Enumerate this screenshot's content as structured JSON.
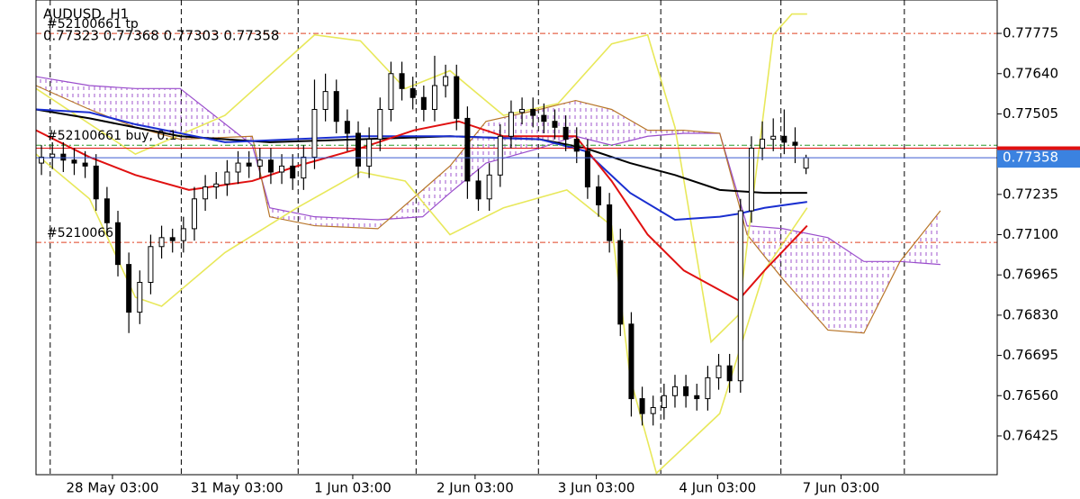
{
  "chart_data": {
    "type": "candlestick",
    "title": "AUDUSD, H1",
    "ohlc_text": "0.77323 0.77368 0.77303 0.77358",
    "xlim": [
      0,
      88
    ],
    "ylim": [
      0.76295,
      0.77887
    ],
    "xticks": [
      {
        "value": 7.0,
        "label": "28 May 03:00"
      },
      {
        "value": 18.4,
        "label": "31 May 03:00"
      },
      {
        "value": 29.0,
        "label": "1 Jun 03:00"
      },
      {
        "value": 40.2,
        "label": "2 Jun 03:00"
      },
      {
        "value": 51.3,
        "label": "3 Jun 03:00"
      },
      {
        "value": 62.4,
        "label": "4 Jun 03:00"
      },
      {
        "value": 73.7,
        "label": "7 Jun 03:00"
      }
    ],
    "day_lines": [
      1.3,
      13.3,
      24.0,
      34.8,
      46.0,
      57.2,
      68.2,
      79.5
    ],
    "yticks": [
      0.77775,
      {
        "value": 0.7764,
        "label": "0.77640"
      },
      0.77505,
      0.77235,
      {
        "value": 0.771,
        "label": "0.77100"
      },
      0.76965,
      {
        "value": 0.7683,
        "label": "0.76830"
      },
      0.76695,
      {
        "value": 0.7656,
        "label": "0.76560"
      },
      0.76425
    ],
    "candles": [
      [
        0.7734,
        0.774,
        0.773,
        0.7736
      ],
      [
        0.7736,
        0.7741,
        0.7732,
        0.7737
      ],
      [
        0.7737,
        0.7741,
        0.7731,
        0.7735
      ],
      [
        0.7735,
        0.7739,
        0.773,
        0.7734
      ],
      [
        0.7734,
        0.7738,
        0.7729,
        0.7733
      ],
      [
        0.7733,
        0.7737,
        0.7718,
        0.7722
      ],
      [
        0.7722,
        0.7726,
        0.771,
        0.7714
      ],
      [
        0.7714,
        0.7718,
        0.7696,
        0.77
      ],
      [
        0.77,
        0.7704,
        0.7677,
        0.7684
      ],
      [
        0.7684,
        0.7698,
        0.768,
        0.7694
      ],
      [
        0.7694,
        0.771,
        0.769,
        0.7706
      ],
      [
        0.7706,
        0.7713,
        0.7702,
        0.7709
      ],
      [
        0.7709,
        0.7712,
        0.7704,
        0.7708
      ],
      [
        0.7708,
        0.7716,
        0.7704,
        0.7712
      ],
      [
        0.7712,
        0.7726,
        0.7708,
        0.7722
      ],
      [
        0.7722,
        0.773,
        0.7718,
        0.7726
      ],
      [
        0.7726,
        0.7731,
        0.7722,
        0.7727
      ],
      [
        0.7727,
        0.7735,
        0.7723,
        0.7731
      ],
      [
        0.7731,
        0.7738,
        0.7727,
        0.7734
      ],
      [
        0.7734,
        0.7738,
        0.7729,
        0.7733
      ],
      [
        0.7733,
        0.7739,
        0.7729,
        0.7735
      ],
      [
        0.7735,
        0.7739,
        0.7727,
        0.7731
      ],
      [
        0.7731,
        0.7737,
        0.7727,
        0.7733
      ],
      [
        0.7733,
        0.7737,
        0.7725,
        0.7729
      ],
      [
        0.7729,
        0.774,
        0.7725,
        0.7736
      ],
      [
        0.7736,
        0.7762,
        0.7732,
        0.7752
      ],
      [
        0.7752,
        0.7764,
        0.7748,
        0.7758
      ],
      [
        0.7758,
        0.7762,
        0.7744,
        0.7748
      ],
      [
        0.7748,
        0.7752,
        0.7738,
        0.7744
      ],
      [
        0.7744,
        0.7748,
        0.7729,
        0.7733
      ],
      [
        0.7733,
        0.7746,
        0.7729,
        0.7742
      ],
      [
        0.7742,
        0.7756,
        0.7738,
        0.7752
      ],
      [
        0.7752,
        0.7768,
        0.7748,
        0.7764
      ],
      [
        0.7764,
        0.7768,
        0.7755,
        0.7759
      ],
      [
        0.7759,
        0.7763,
        0.7752,
        0.7756
      ],
      [
        0.7756,
        0.776,
        0.7748,
        0.7752
      ],
      [
        0.7752,
        0.777,
        0.7748,
        0.776
      ],
      [
        0.776,
        0.7767,
        0.7756,
        0.7763
      ],
      [
        0.7763,
        0.7767,
        0.7745,
        0.7749
      ],
      [
        0.7749,
        0.7753,
        0.7722,
        0.7728
      ],
      [
        0.7728,
        0.7732,
        0.7718,
        0.7722
      ],
      [
        0.7722,
        0.7734,
        0.7718,
        0.773
      ],
      [
        0.773,
        0.7747,
        0.7726,
        0.7743
      ],
      [
        0.7743,
        0.7755,
        0.7739,
        0.7751
      ],
      [
        0.7751,
        0.7756,
        0.7747,
        0.7752
      ],
      [
        0.7752,
        0.7756,
        0.7746,
        0.775
      ],
      [
        0.775,
        0.7754,
        0.7744,
        0.7748
      ],
      [
        0.7748,
        0.7752,
        0.7742,
        0.7746
      ],
      [
        0.7746,
        0.775,
        0.7738,
        0.7742
      ],
      [
        0.7742,
        0.7746,
        0.7734,
        0.7738
      ],
      [
        0.7738,
        0.7742,
        0.7722,
        0.7726
      ],
      [
        0.7726,
        0.773,
        0.7716,
        0.772
      ],
      [
        0.772,
        0.7724,
        0.7704,
        0.7708
      ],
      [
        0.7708,
        0.7712,
        0.7676,
        0.768
      ],
      [
        0.768,
        0.7684,
        0.7649,
        0.7655
      ],
      [
        0.7655,
        0.7659,
        0.7646,
        0.765
      ],
      [
        0.765,
        0.7656,
        0.7646,
        0.7652
      ],
      [
        0.7652,
        0.766,
        0.7648,
        0.7656
      ],
      [
        0.7656,
        0.7663,
        0.7652,
        0.7659
      ],
      [
        0.7659,
        0.7663,
        0.7652,
        0.7656
      ],
      [
        0.7656,
        0.766,
        0.7651,
        0.7655
      ],
      [
        0.7655,
        0.7666,
        0.7651,
        0.7662
      ],
      [
        0.7662,
        0.767,
        0.7658,
        0.7666
      ],
      [
        0.7666,
        0.767,
        0.7657,
        0.7661
      ],
      [
        0.7661,
        0.7722,
        0.7657,
        0.7718
      ],
      [
        0.7718,
        0.7743,
        0.7714,
        0.7739
      ],
      [
        0.7739,
        0.7748,
        0.7735,
        0.7742
      ],
      [
        0.7742,
        0.7749,
        0.7738,
        0.7743
      ],
      [
        0.7743,
        0.7752,
        0.7737,
        0.7741
      ],
      [
        0.7741,
        0.7746,
        0.7734,
        0.774
      ],
      [
        0.77323,
        0.77368,
        0.77303,
        0.77358
      ]
    ],
    "cloud": {
      "x": [
        0,
        4.9,
        9.1,
        13.2,
        19.8,
        21.4,
        25.5,
        31.3,
        35.4,
        37.9,
        41.2,
        46.1,
        49.4,
        52.7,
        56.0,
        59.3,
        62.6,
        65.1,
        68.4,
        72.5,
        75.8,
        79.1,
        82.8
      ],
      "span_a": [
        0.7763,
        0.776,
        0.7759,
        0.7759,
        0.774,
        0.7719,
        0.7716,
        0.7715,
        0.7716,
        0.7724,
        0.7734,
        0.7739,
        0.7743,
        0.774,
        0.7743,
        0.7744,
        0.7744,
        0.7713,
        0.7712,
        0.7709,
        0.7701,
        0.7701,
        0.77
      ],
      "span_b": [
        0.776,
        0.7752,
        0.7746,
        0.7742,
        0.7743,
        0.7716,
        0.7713,
        0.7712,
        0.7725,
        0.7733,
        0.7748,
        0.7752,
        0.7755,
        0.7752,
        0.7745,
        0.7745,
        0.7744,
        0.771,
        0.7695,
        0.7678,
        0.7677,
        0.7701,
        0.7718
      ],
      "color_a": "#9a4dcc",
      "color_b": "#b8762a"
    },
    "series": [
      {
        "color": "#e8e85a",
        "x": [
          0,
          9.1,
          17.3,
          25.5,
          29.7,
          33.8,
          37.9,
          42.8,
          47.8,
          52.7,
          56.0,
          58.5,
          61.8,
          64.3,
          67.5,
          69.2,
          70.6
        ],
        "values": [
          0.7759,
          0.7737,
          0.775,
          0.7777,
          0.7775,
          0.7759,
          0.7765,
          0.775,
          0.7754,
          0.7774,
          0.7777,
          0.7746,
          0.7674,
          0.7683,
          0.7777,
          0.7784,
          0.7784
        ]
      },
      {
        "color": "#e8e85a",
        "x": [
          0,
          4.9,
          9.1,
          11.5,
          17.3,
          23.9,
          29.7,
          33.8,
          37.9,
          42.8,
          48.6,
          52.7,
          54.4,
          56.8,
          62.6,
          66.7,
          70.6
        ],
        "values": [
          0.7737,
          0.7722,
          0.7689,
          0.7686,
          0.7704,
          0.7719,
          0.7731,
          0.7728,
          0.771,
          0.7719,
          0.7725,
          0.7713,
          0.7662,
          0.763,
          0.765,
          0.7698,
          0.7719
        ]
      },
      {
        "color": "#000000",
        "x": [
          0,
          4.9,
          13.2,
          21.4,
          29.7,
          37.9,
          46.1,
          50.3,
          54.4,
          58.5,
          62.6,
          66.7,
          70.6
        ],
        "values": [
          0.7752,
          0.7749,
          0.7743,
          0.7741,
          0.7742,
          0.7743,
          0.7742,
          0.7739,
          0.7734,
          0.773,
          0.7725,
          0.7724,
          0.7724
        ]
      },
      {
        "color": "#1a2fd0",
        "x": [
          0,
          4.9,
          9.1,
          17.3,
          29.7,
          37.9,
          46.1,
          50.3,
          54.4,
          58.5,
          62.6,
          64.3,
          66.7,
          70.6
        ],
        "values": [
          0.7752,
          0.7751,
          0.7747,
          0.7741,
          0.7743,
          0.7743,
          0.7742,
          0.7738,
          0.7724,
          0.7715,
          0.7716,
          0.7717,
          0.7719,
          0.7721
        ]
      },
      {
        "color": "#e01010",
        "x": [
          0,
          4.9,
          9.1,
          14.0,
          19.8,
          23.9,
          29.7,
          34.6,
          38.7,
          42.8,
          49.4,
          52.7,
          56.0,
          59.3,
          64.3,
          66.7,
          70.6
        ],
        "values": [
          0.7745,
          0.7736,
          0.773,
          0.7725,
          0.7728,
          0.7733,
          0.7739,
          0.7745,
          0.7748,
          0.7743,
          0.7743,
          0.7728,
          0.771,
          0.7698,
          0.7688,
          0.7698,
          0.7713
        ]
      }
    ],
    "levels": [
      {
        "label": "#52100661 tp",
        "value": 0.77775,
        "color": "#e04020"
      },
      {
        "label": "#52100661 buy, 0.1",
        "value": 0.774,
        "color": "#2a9a2a"
      },
      {
        "label": "#5210066",
        "value": 0.77074,
        "color": "#e04020"
      }
    ],
    "ask": 0.7739
  }
}
